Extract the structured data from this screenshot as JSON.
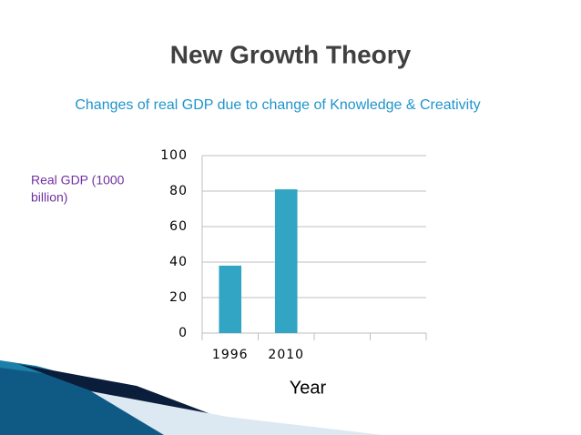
{
  "chart_data": {
    "type": "bar",
    "title": "New Growth Theory",
    "subtitle": "Changes of real GDP due to change of Knowledge & Creativity",
    "y_label": [
      "Real GDP (1000",
      "billion)"
    ],
    "x_label": "Year",
    "categories": [
      "1996",
      "2010",
      null,
      null
    ],
    "values": [
      38,
      81,
      null,
      null
    ],
    "color": "#31a5c3",
    "ylim": [
      0,
      100
    ],
    "yticks": [
      0,
      20,
      40,
      60,
      80,
      100
    ],
    "grid": true
  }
}
